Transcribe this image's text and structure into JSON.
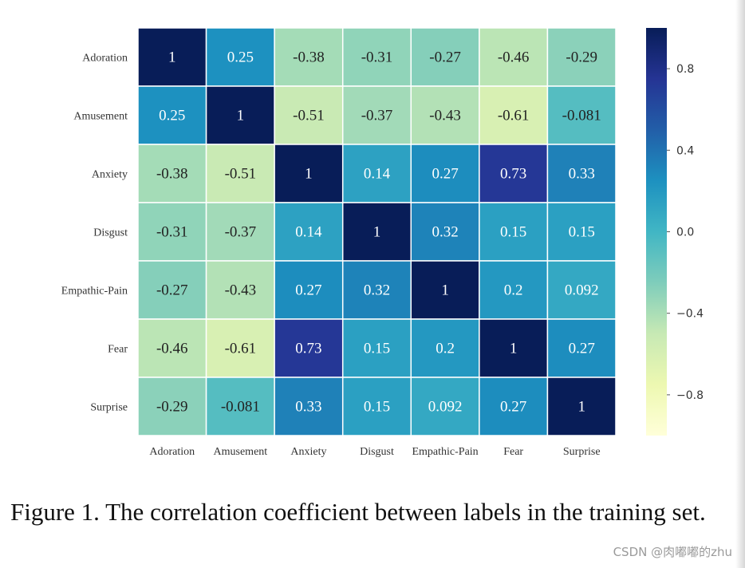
{
  "chart_data": {
    "type": "heatmap",
    "title": "",
    "xlabel": "",
    "ylabel": "",
    "row_labels": [
      "Adoration",
      "Amusement",
      "Anxiety",
      "Disgust",
      "Empathic-Pain",
      "Fear",
      "Surprise"
    ],
    "col_labels": [
      "Adoration",
      "Amusement",
      "Anxiety",
      "Disgust",
      "Empathic-Pain",
      "Fear",
      "Surprise"
    ],
    "values": [
      [
        1,
        0.25,
        -0.38,
        -0.31,
        -0.27,
        -0.46,
        -0.29
      ],
      [
        0.25,
        1,
        -0.51,
        -0.37,
        -0.43,
        -0.61,
        -0.081
      ],
      [
        -0.38,
        -0.51,
        1,
        0.14,
        0.27,
        0.73,
        0.33
      ],
      [
        -0.31,
        -0.37,
        0.14,
        1,
        0.32,
        0.15,
        0.15
      ],
      [
        -0.27,
        -0.43,
        0.27,
        0.32,
        1,
        0.2,
        0.092
      ],
      [
        -0.46,
        -0.61,
        0.73,
        0.15,
        0.2,
        1,
        0.27
      ],
      [
        -0.29,
        -0.081,
        0.33,
        0.15,
        0.092,
        0.27,
        1
      ]
    ],
    "value_labels": [
      [
        "1",
        "0.25",
        "-0.38",
        "-0.31",
        "-0.27",
        "-0.46",
        "-0.29"
      ],
      [
        "0.25",
        "1",
        "-0.51",
        "-0.37",
        "-0.43",
        "-0.61",
        "-0.081"
      ],
      [
        "-0.38",
        "-0.51",
        "1",
        "0.14",
        "0.27",
        "0.73",
        "0.33"
      ],
      [
        "-0.31",
        "-0.37",
        "0.14",
        "1",
        "0.32",
        "0.15",
        "0.15"
      ],
      [
        "-0.27",
        "-0.43",
        "0.27",
        "0.32",
        "1",
        "0.2",
        "0.092"
      ],
      [
        "-0.46",
        "-0.61",
        "0.73",
        "0.15",
        "0.2",
        "1",
        "0.27"
      ],
      [
        "-0.29",
        "-0.081",
        "0.33",
        "0.15",
        "0.092",
        "0.27",
        "1"
      ]
    ],
    "colormap": "YlGnBu",
    "colorbar": {
      "range": [
        -1,
        1
      ],
      "ticks": [
        0.8,
        0.4,
        0.0,
        -0.4,
        -0.8
      ],
      "tick_labels": [
        "0.8",
        "0.4",
        "0.0",
        "−0.4",
        "−0.8"
      ],
      "placement": "right"
    },
    "cell_borders": "#ffffff",
    "grid": false
  },
  "caption": "Figure 1. The correlation coefficient between labels in the training set.",
  "watermark": "CSDN @肉嘟嘟的zhu"
}
